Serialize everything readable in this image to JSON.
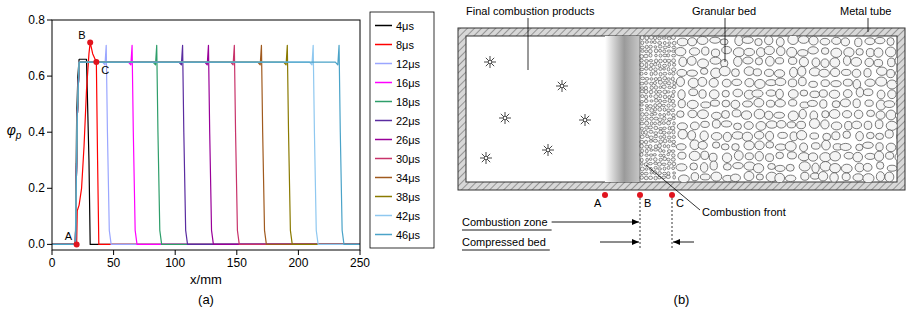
{
  "chart_data": {
    "type": "line",
    "panel": "(a)",
    "x_label": "x/mm",
    "y_label": "φp",
    "xlim": [
      0,
      250
    ],
    "xticks": [
      0,
      50,
      100,
      150,
      200,
      250
    ],
    "ylim": [
      -0.02,
      0.8
    ],
    "yticks": [
      {
        "value": 0,
        "label": "0.0"
      },
      {
        "value": 0.2,
        "label": "0.2"
      },
      {
        "value": 0.4,
        "label": "0.4"
      },
      {
        "value": 0.6,
        "label": "0.6"
      },
      {
        "value": 0.8,
        "label": "0.8"
      }
    ],
    "grid": false,
    "legend": "right",
    "series": [
      {
        "name": "4μs",
        "color": "#000000",
        "x": [
          0,
          19,
          20,
          21,
          22,
          28,
          30,
          31,
          250
        ],
        "values": [
          0,
          0,
          0.45,
          0.6,
          0.66,
          0.66,
          0.3,
          0,
          0
        ]
      },
      {
        "name": "8μs",
        "color": "#ff0000",
        "x": [
          0,
          20,
          20.5,
          22,
          24,
          26,
          28,
          30,
          31,
          33,
          36,
          37,
          38,
          250
        ],
        "values": [
          0,
          0,
          0.12,
          0.14,
          0.2,
          0.35,
          0.55,
          0.68,
          0.72,
          0.68,
          0.65,
          0.3,
          0,
          0
        ]
      },
      {
        "name": "12μs",
        "color": "#9aa6ff",
        "x": [
          0,
          19,
          20.5,
          22,
          41,
          43,
          44,
          45,
          46.5,
          48,
          250
        ],
        "values": [
          0,
          0,
          0.45,
          0.65,
          0.65,
          0.64,
          0.71,
          0.4,
          0.05,
          0,
          0
        ]
      },
      {
        "name": "16μs",
        "color": "#ff00ff",
        "x": [
          0,
          19,
          20.5,
          22,
          62,
          64,
          65,
          66,
          67.5,
          69,
          250
        ],
        "values": [
          0,
          0,
          0.45,
          0.65,
          0.65,
          0.64,
          0.71,
          0.4,
          0.05,
          0,
          0
        ]
      },
      {
        "name": "18μs",
        "color": "#2e9e6a",
        "x": [
          0,
          19,
          20.5,
          22,
          82,
          84,
          85,
          86,
          87.5,
          89,
          250
        ],
        "values": [
          0,
          0,
          0.45,
          0.65,
          0.65,
          0.64,
          0.71,
          0.4,
          0.05,
          0,
          0
        ]
      },
      {
        "name": "22μs",
        "color": "#5a2ca0",
        "x": [
          0,
          19,
          20.5,
          22,
          103,
          105,
          106,
          107,
          108.5,
          110,
          250
        ],
        "values": [
          0,
          0,
          0.45,
          0.65,
          0.65,
          0.64,
          0.71,
          0.4,
          0.05,
          0,
          0
        ]
      },
      {
        "name": "26μs",
        "color": "#990099",
        "x": [
          0,
          19,
          20.5,
          22,
          124,
          126,
          127,
          128,
          129.5,
          131,
          250
        ],
        "values": [
          0,
          0,
          0.45,
          0.65,
          0.65,
          0.64,
          0.71,
          0.4,
          0.05,
          0,
          0
        ]
      },
      {
        "name": "30μs",
        "color": "#c8336a",
        "x": [
          0,
          19,
          20.5,
          22,
          145,
          147,
          148,
          149,
          150.5,
          152,
          250
        ],
        "values": [
          0,
          0,
          0.45,
          0.65,
          0.65,
          0.64,
          0.71,
          0.4,
          0.05,
          0,
          0
        ]
      },
      {
        "name": "34μs",
        "color": "#a05a1e",
        "x": [
          0,
          19,
          20.5,
          22,
          167,
          169,
          170,
          171,
          172.5,
          174,
          250
        ],
        "values": [
          0,
          0,
          0.45,
          0.65,
          0.65,
          0.64,
          0.71,
          0.4,
          0.05,
          0,
          0
        ]
      },
      {
        "name": "38μs",
        "color": "#8a7a00",
        "x": [
          0,
          19,
          20.5,
          22,
          188,
          190,
          191,
          192,
          193.5,
          195,
          250
        ],
        "values": [
          0,
          0,
          0.45,
          0.65,
          0.65,
          0.64,
          0.71,
          0.4,
          0.05,
          0,
          0
        ]
      },
      {
        "name": "42μs",
        "color": "#8fc8f0",
        "x": [
          0,
          19,
          20.5,
          22,
          209,
          211,
          212,
          213,
          214.5,
          216,
          250
        ],
        "values": [
          0,
          0,
          0.45,
          0.65,
          0.65,
          0.64,
          0.71,
          0.4,
          0.05,
          0,
          0
        ]
      },
      {
        "name": "46μs",
        "color": "#4aa3c8",
        "x": [
          0,
          19,
          20.5,
          22,
          230,
          232,
          233,
          234,
          235.5,
          237,
          250
        ],
        "values": [
          0,
          0,
          0.45,
          0.65,
          0.65,
          0.64,
          0.71,
          0.4,
          0.05,
          0,
          0
        ]
      }
    ],
    "annotations": [
      {
        "label": "A",
        "x": 20,
        "y": 0
      },
      {
        "label": "B",
        "x": 31,
        "y": 0.72
      },
      {
        "label": "C",
        "x": 36,
        "y": 0.65
      }
    ]
  },
  "diagram": {
    "panel": "(b)",
    "labels": {
      "final_products": "Final combustion products",
      "granular_bed": "Granular bed",
      "metal_tube": "Metal tube",
      "combustion_zone": "Combustion zone",
      "compressed_bed": "Compressed bed",
      "combustion_front": "Combustion front"
    },
    "points": [
      "A",
      "B",
      "C"
    ]
  }
}
